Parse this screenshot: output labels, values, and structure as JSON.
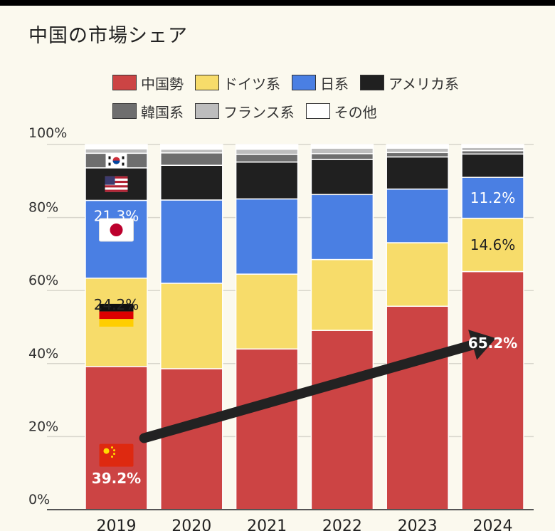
{
  "title": "中国の市場シェア",
  "chart_data": {
    "type": "bar",
    "stacked": true,
    "percent": true,
    "categories": [
      "2019",
      "2020",
      "2021",
      "2022",
      "2023",
      "2024"
    ],
    "ylim": [
      0,
      100
    ],
    "yticks": [
      "0%",
      "20%",
      "40%",
      "60%",
      "80%",
      "100%"
    ],
    "grid": true,
    "legend_placement": "top",
    "series": [
      {
        "name": "中国勢",
        "color": "#cc4444",
        "values": [
          39.2,
          38.6,
          44.0,
          49.1,
          55.7,
          65.2
        ]
      },
      {
        "name": "ドイツ系",
        "color": "#f7dc6a",
        "values": [
          24.2,
          23.4,
          20.5,
          19.4,
          17.4,
          14.6
        ]
      },
      {
        "name": "日系",
        "color": "#4a7fe3",
        "values": [
          21.3,
          22.8,
          20.6,
          17.8,
          14.7,
          11.2
        ]
      },
      {
        "name": "アメリカ系",
        "color": "#202020",
        "values": [
          8.9,
          9.5,
          10.1,
          9.6,
          8.8,
          6.4
        ]
      },
      {
        "name": "韓国系",
        "color": "#6e6e6e",
        "values": [
          4.0,
          3.4,
          2.1,
          1.6,
          1.2,
          0.9
        ]
      },
      {
        "name": "フランス系",
        "color": "#bdbdbd",
        "values": [
          1.2,
          1.0,
          1.4,
          1.5,
          1.2,
          0.9
        ]
      },
      {
        "name": "その他",
        "color": "#ffffff",
        "values": [
          1.2,
          1.3,
          1.3,
          1.0,
          1.0,
          0.8
        ]
      }
    ],
    "data_labels": [
      {
        "text": "39.2%",
        "series": 0,
        "category": 0
      },
      {
        "text": "24.2%",
        "series": 1,
        "category": 0
      },
      {
        "text": "21.3%",
        "series": 2,
        "category": 0
      },
      {
        "text": "65.2%",
        "series": 0,
        "category": 5
      },
      {
        "text": "14.6%",
        "series": 1,
        "category": 5
      },
      {
        "text": "11.2%",
        "series": 2,
        "category": 5
      }
    ],
    "annotations": {
      "flags": [
        {
          "icon": "china-flag-icon",
          "series": 0,
          "category": 0
        },
        {
          "icon": "germany-flag-icon",
          "series": 1,
          "category": 0
        },
        {
          "icon": "japan-flag-icon",
          "series": 2,
          "category": 0
        },
        {
          "icon": "usa-flag-icon",
          "series": 3,
          "category": 0
        },
        {
          "icon": "korea-flag-icon",
          "series": 4,
          "category": 0
        }
      ],
      "arrow": {
        "from_category": 0,
        "to_category": 5,
        "icon": "trend-arrow-icon"
      }
    }
  }
}
